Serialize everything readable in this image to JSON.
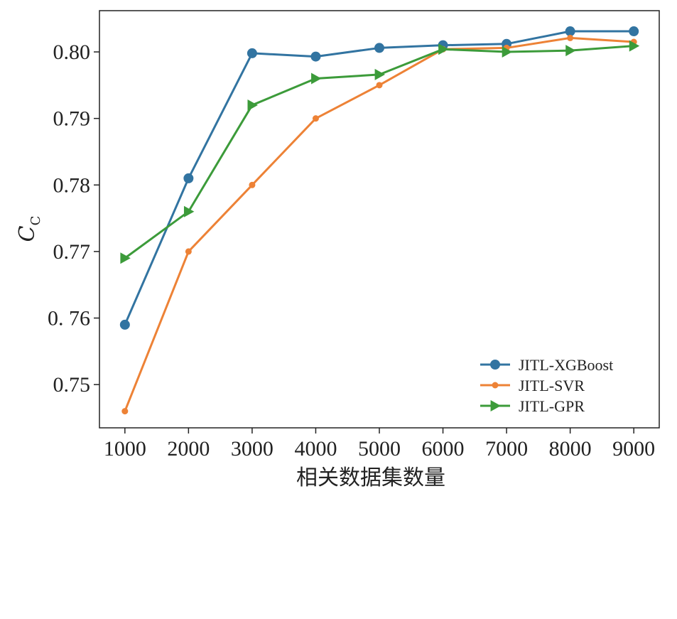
{
  "chart_data": {
    "type": "line",
    "title": "",
    "xlabel": "相关数据集数量",
    "ylabel": "C",
    "ylabel_sub": "C",
    "x": [
      1000,
      2000,
      3000,
      4000,
      5000,
      6000,
      7000,
      8000,
      9000
    ],
    "xlim": [
      600,
      9400
    ],
    "ylim": [
      0.7435,
      0.8062
    ],
    "yticks": [
      0.75,
      0.76,
      0.77,
      0.78,
      0.79,
      0.8
    ],
    "ytick_labels": [
      "0.75",
      "0. 76",
      "0.77",
      "0.78",
      "0.79",
      "0.80"
    ],
    "xtick_labels": [
      "1000",
      "2000",
      "3000",
      "4000",
      "5000",
      "6000",
      "7000",
      "8000",
      "9000"
    ],
    "grid": false,
    "legend_position": "bottom-right",
    "series": [
      {
        "name": "JITL-XGBoost",
        "color": "#3274a1",
        "marker": "circle",
        "values": [
          0.759,
          0.781,
          0.7998,
          0.7993,
          0.8006,
          0.801,
          0.8012,
          0.8031,
          0.8031
        ]
      },
      {
        "name": "JITL-SVR",
        "color": "#ed8236",
        "marker": "small-circle",
        "values": [
          0.746,
          0.77,
          0.78,
          0.79,
          0.795,
          0.8004,
          0.8006,
          0.8021,
          0.8015
        ]
      },
      {
        "name": "JITL-GPR",
        "color": "#3c9b3a",
        "marker": "triangle-right",
        "values": [
          0.769,
          0.776,
          0.792,
          0.796,
          0.7966,
          0.8004,
          0.8,
          0.8002,
          0.8009
        ]
      }
    ]
  }
}
